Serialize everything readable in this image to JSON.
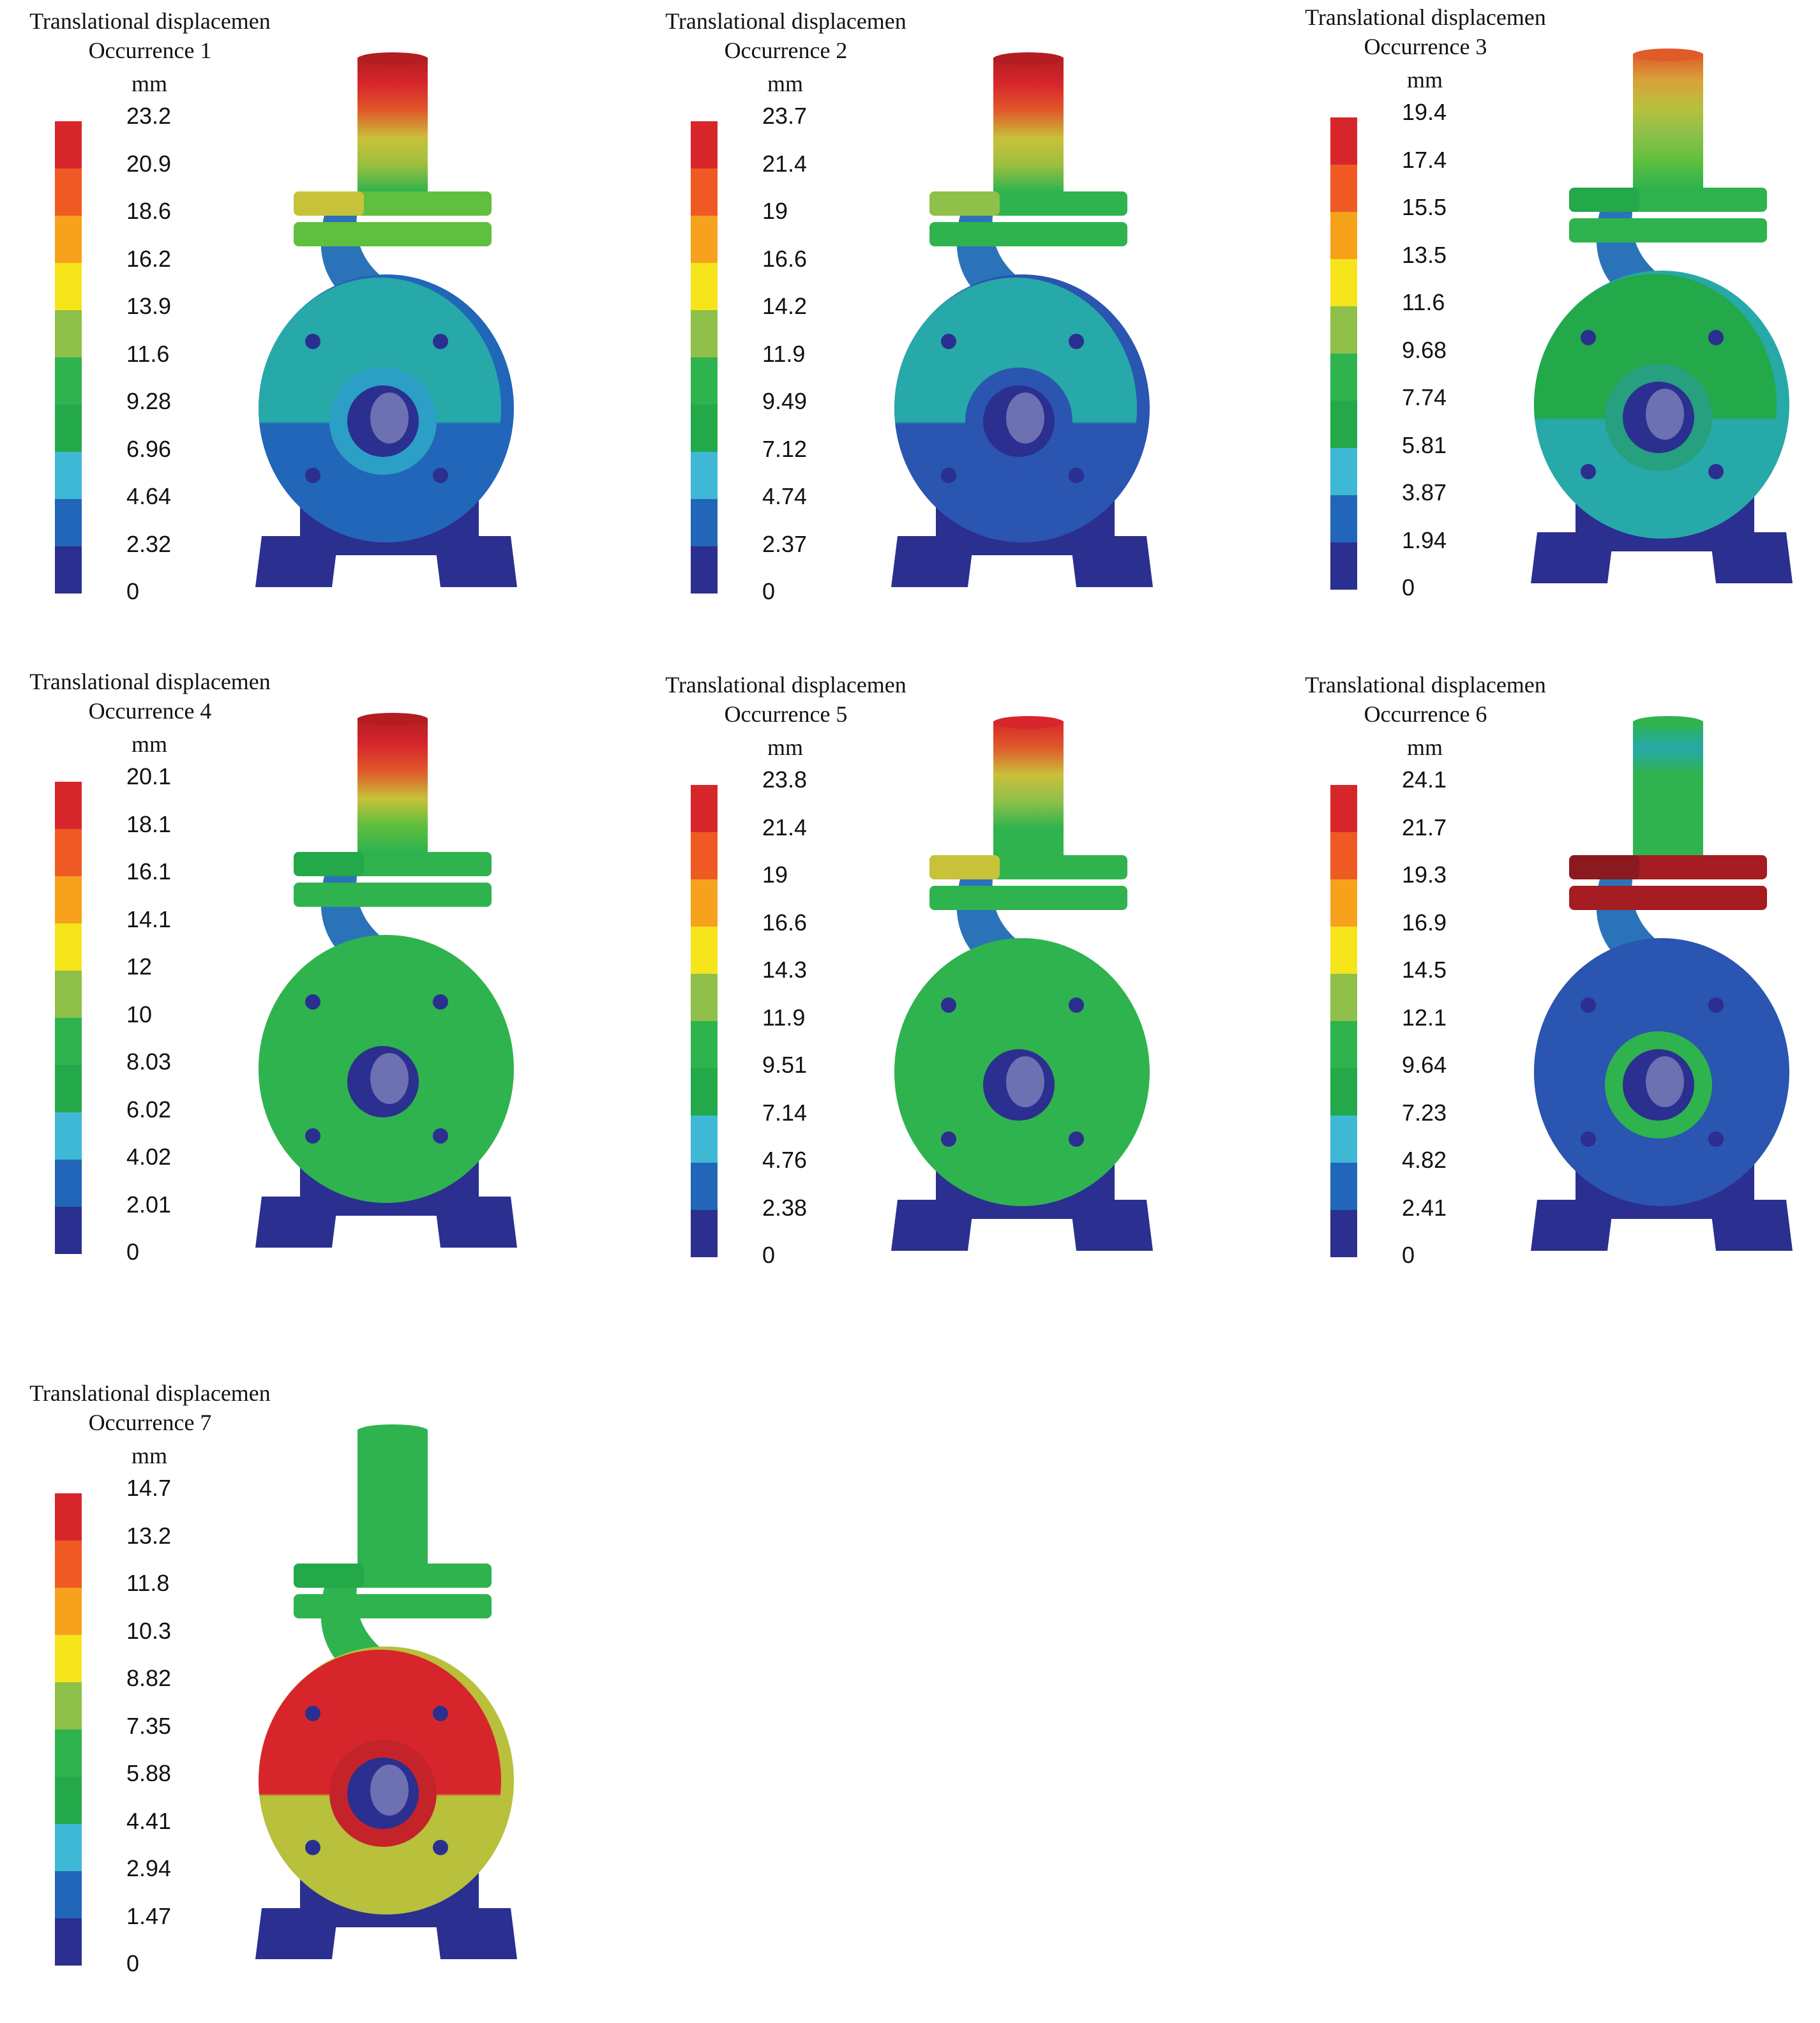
{
  "colors": {
    "scale": [
      "#2b2f8f",
      "#2166b8",
      "#3fb8d6",
      "#23a84a",
      "#2fb34e",
      "#8ec04a",
      "#f6e51b",
      "#f7a21c",
      "#ef5a24",
      "#d7262b"
    ],
    "model_shadow": "#23286e"
  },
  "panels": [
    {
      "title_line1": "Translational displacemen",
      "title_line2": "Occurrence 1",
      "unit": "mm",
      "ticks": [
        "23.2",
        "20.9",
        "18.6",
        "16.2",
        "13.9",
        "11.6",
        "9.28",
        "6.96",
        "4.64",
        "2.32",
        "0"
      ],
      "model": {
        "pipe": [
          "#b31d22",
          "#d7262b",
          "#e05a2a",
          "#c9c03a",
          "#9cbf3f",
          "#2fb34e"
        ],
        "flange": "#5fbf3e",
        "flange_accent": "#c8c23a",
        "volute_upper": "#26a9a8",
        "volute_lower": "#2166b8",
        "inlet": "#2b9fc6",
        "feet": "#2b2f8f",
        "neck": "#2b73b8"
      }
    },
    {
      "title_line1": "Translational displacemen",
      "title_line2": "Occurrence 2",
      "unit": "mm",
      "ticks": [
        "23.7",
        "21.4",
        "19",
        "16.6",
        "14.2",
        "11.9",
        "9.49",
        "7.12",
        "4.74",
        "2.37",
        "0"
      ],
      "model": {
        "pipe": [
          "#b31d22",
          "#d7262b",
          "#e05a2a",
          "#c9c03a",
          "#9cbf3f",
          "#2fb34e"
        ],
        "flange": "#2fb34e",
        "flange_accent": "#8ec04a",
        "volute_upper": "#26a9a8",
        "volute_lower": "#2a55b0",
        "inlet": "#2a55b0",
        "feet": "#2b2f8f",
        "neck": "#2b73b8"
      }
    },
    {
      "title_line1": "Translational displacemen",
      "title_line2": "Occurrence 3",
      "unit": "mm",
      "ticks": [
        "19.4",
        "17.4",
        "15.5",
        "13.5",
        "11.6",
        "9.68",
        "7.74",
        "5.81",
        "3.87",
        "1.94",
        "0"
      ],
      "model": {
        "pipe": [
          "#e05a2a",
          "#d8a23a",
          "#b8c03c",
          "#8ec04a",
          "#5fbf3e",
          "#2fb34e"
        ],
        "flange": "#2fb34e",
        "flange_accent": "#23a84a",
        "volute_upper": "#23a84a",
        "volute_lower": "#26a9a8",
        "inlet": "#26a07e",
        "feet": "#2b2f8f",
        "neck": "#2b73b8"
      }
    },
    {
      "title_line1": "Translational displacemen",
      "title_line2": "Occurrence 4",
      "unit": "mm",
      "ticks": [
        "20.1",
        "18.1",
        "16.1",
        "14.1",
        "12",
        "10",
        "8.03",
        "6.02",
        "4.02",
        "2.01",
        "0"
      ],
      "model": {
        "pipe": [
          "#b31d22",
          "#d7262b",
          "#e05a2a",
          "#c9c03a",
          "#5fbf3e",
          "#2fb34e"
        ],
        "flange": "#2fb34e",
        "flange_accent": "#23a84a",
        "volute_upper": "#2fb34e",
        "volute_lower": "#2fb34e",
        "inlet": "#2fb34e",
        "feet": "#2b2f8f",
        "neck": "#2b73b8"
      }
    },
    {
      "title_line1": "Translational displacemen",
      "title_line2": "Occurrence 5",
      "unit": "mm",
      "ticks": [
        "23.8",
        "21.4",
        "19",
        "16.6",
        "14.3",
        "11.9",
        "9.51",
        "7.14",
        "4.76",
        "2.38",
        "0"
      ],
      "model": {
        "pipe": [
          "#d7262b",
          "#e05a2a",
          "#c9c03a",
          "#8ec04a",
          "#2fb34e",
          "#2fb34e"
        ],
        "flange": "#2fb34e",
        "flange_accent": "#c8c23a",
        "volute_upper": "#2fb34e",
        "volute_lower": "#2fb34e",
        "inlet": "#2fb34e",
        "feet": "#2b2f8f",
        "neck": "#2b73b8"
      }
    },
    {
      "title_line1": "Translational displacemen",
      "title_line2": "Occurrence 6",
      "unit": "mm",
      "ticks": [
        "24.1",
        "21.7",
        "19.3",
        "16.9",
        "14.5",
        "12.1",
        "9.64",
        "7.23",
        "4.82",
        "2.41",
        "0"
      ],
      "model": {
        "pipe": [
          "#2fb34e",
          "#26a9a8",
          "#2fb34e",
          "#2fb34e",
          "#2fb34e",
          "#2fb34e"
        ],
        "flange": "#a51c22",
        "flange_accent": "#8a1a1e",
        "volute_upper": "#2a55b0",
        "volute_lower": "#2a55b0",
        "inlet": "#2fb34e",
        "feet": "#2b2f8f",
        "neck": "#2b73b8"
      }
    },
    {
      "title_line1": "Translational displacemen",
      "title_line2": "Occurrence 7",
      "unit": "mm",
      "ticks": [
        "14.7",
        "13.2",
        "11.8",
        "10.3",
        "8.82",
        "7.35",
        "5.88",
        "4.41",
        "2.94",
        "1.47",
        "0"
      ],
      "model": {
        "pipe": [
          "#2fb34e",
          "#2fb34e",
          "#2fb34e",
          "#2fb34e",
          "#2fb34e",
          "#2fb34e"
        ],
        "flange": "#2fb34e",
        "flange_accent": "#23a84a",
        "volute_upper": "#d7262b",
        "volute_lower": "#b8c03c",
        "inlet": "#c4232a",
        "feet": "#2b2f8f",
        "neck": "#2fb34e"
      }
    }
  ]
}
